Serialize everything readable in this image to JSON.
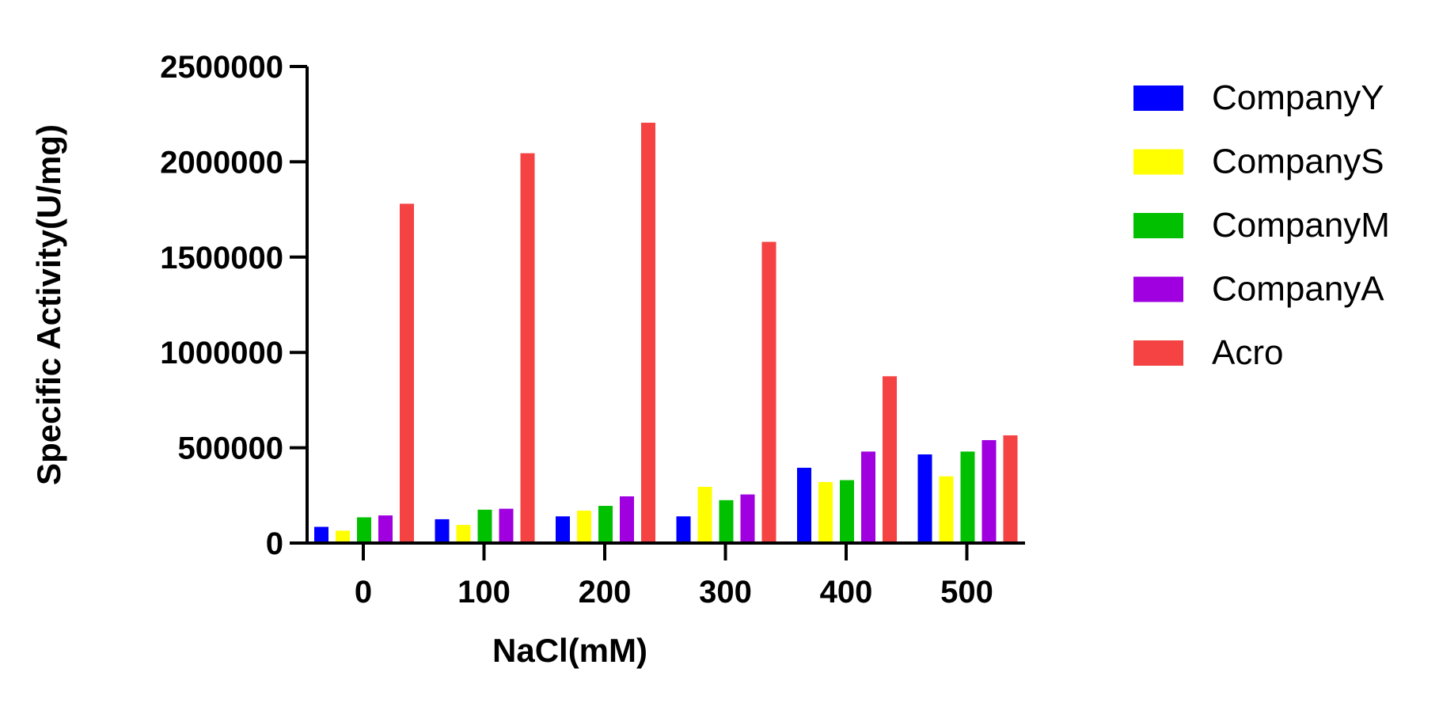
{
  "chart_data": {
    "type": "bar",
    "title": "",
    "xlabel": "NaCl(mM)",
    "ylabel": "Specific Activity(U/mg)",
    "categories": [
      "0",
      "100",
      "200",
      "300",
      "400",
      "500"
    ],
    "ylim": [
      0,
      2500000
    ],
    "yticks": [
      0,
      500000,
      1000000,
      1500000,
      2000000,
      2500000
    ],
    "ytick_labels": [
      "0",
      "500000",
      "1000000",
      "1500000",
      "2000000",
      "2500000"
    ],
    "grid": false,
    "legend_position": "right",
    "series": [
      {
        "name": "CompanyY",
        "color": "#0000FF",
        "values": [
          85000,
          125000,
          140000,
          140000,
          395000,
          465000
        ]
      },
      {
        "name": "CompanyS",
        "color": "#FFFF00",
        "values": [
          65000,
          95000,
          170000,
          295000,
          320000,
          350000
        ]
      },
      {
        "name": "CompanyM",
        "color": "#00C000",
        "values": [
          135000,
          175000,
          195000,
          225000,
          330000,
          480000
        ]
      },
      {
        "name": "CompanyA",
        "color": "#A000E0",
        "values": [
          145000,
          180000,
          245000,
          255000,
          480000,
          540000
        ]
      },
      {
        "name": "Acro",
        "color": "#F54242",
        "values": [
          1780000,
          2045000,
          2205000,
          1580000,
          875000,
          565000
        ]
      }
    ]
  }
}
